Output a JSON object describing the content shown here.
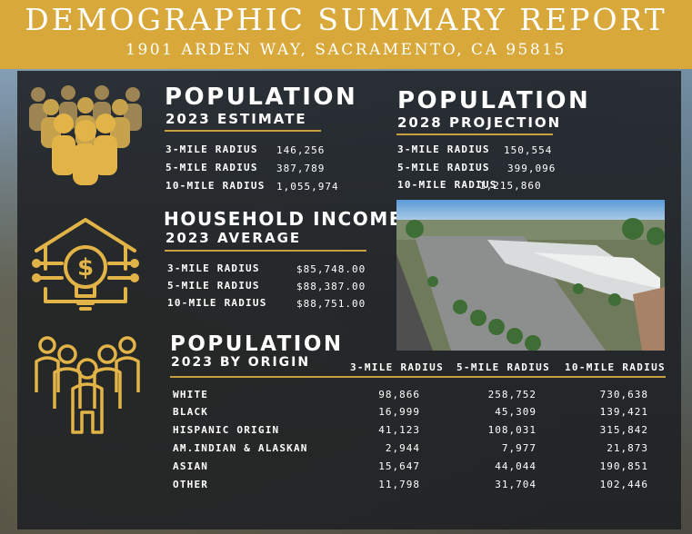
{
  "header": {
    "title": "DEMOGRAPHIC SUMMARY REPORT",
    "address": "1901 ARDEN WAY, SACRAMENTO, CA 95815"
  },
  "population_2023": {
    "title": "POPULATION",
    "subtitle": "2023 ESTIMATE",
    "rows": [
      {
        "label": "3-MILE RADIUS",
        "value": "146,256"
      },
      {
        "label": "5-MILE RADIUS",
        "value": "387,789"
      },
      {
        "label": "10-MILE RADIUS",
        "value": "1,055,974"
      }
    ]
  },
  "population_2028": {
    "title": "POPULATION",
    "subtitle": "2028 PROJECTION",
    "rows": [
      {
        "label": "3-MILE RADIUS",
        "value": "150,554"
      },
      {
        "label": "5-MILE RADIUS",
        "value": "399,096"
      },
      {
        "label": "10-MILE RADIUS",
        "value": "1,215,860"
      }
    ]
  },
  "household_income": {
    "title": "HOUSEHOLD INCOME",
    "subtitle": "2023 AVERAGE",
    "rows": [
      {
        "label": "3-MILE RADIUS",
        "value": "$85,748.00"
      },
      {
        "label": "5-MILE RADIUS",
        "value": "$88,387.00"
      },
      {
        "label": "10-MILE RADIUS",
        "value": "$88,751.00"
      }
    ]
  },
  "origin": {
    "title": "POPULATION",
    "subtitle": "2023 BY ORIGIN",
    "columns": [
      "3-MILE RADIUS",
      "5-MILE RADIUS",
      "10-MILE RADIUS"
    ],
    "rows": [
      {
        "label": "WHITE",
        "values": [
          "98,866",
          "258,752",
          "730,638"
        ]
      },
      {
        "label": "BLACK",
        "values": [
          "16,999",
          "45,309",
          "139,421"
        ]
      },
      {
        "label": "HISPANIC ORIGIN",
        "values": [
          "41,123",
          "108,031",
          "315,842"
        ]
      },
      {
        "label": "AM.INDIAN & ALASKAN",
        "values": [
          "2,944",
          "7,977",
          "21,873"
        ]
      },
      {
        "label": "ASIAN",
        "values": [
          "15,647",
          "44,044",
          "190,851"
        ]
      },
      {
        "label": "OTHER",
        "values": [
          "11,798",
          "31,704",
          "102,446"
        ]
      }
    ]
  },
  "icons": [
    "crowd-icon",
    "house-lightbulb-dollar-icon",
    "people-group-icon"
  ],
  "colors": {
    "gold": "#d8a93a",
    "panel": "#1c1e22",
    "text": "#ffffff"
  }
}
